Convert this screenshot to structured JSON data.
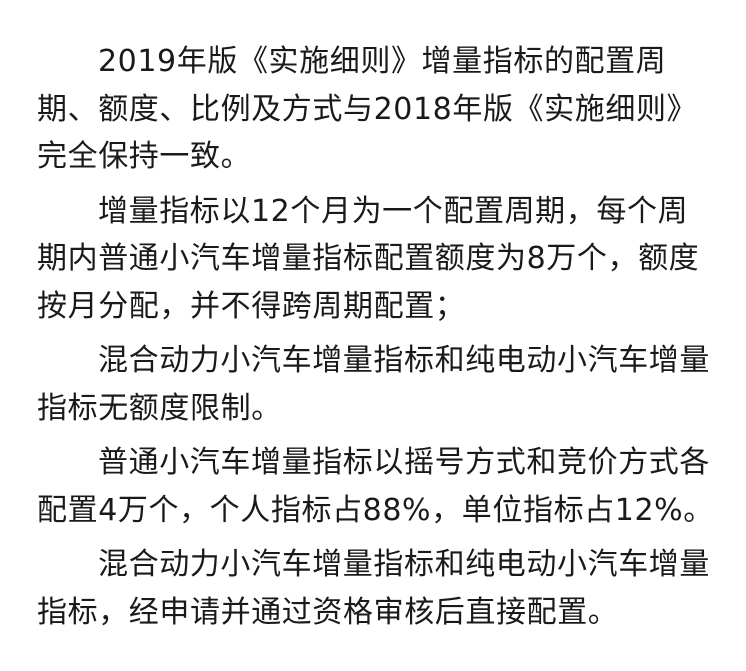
{
  "paragraphs": [
    {
      "lines": [
        "2019年版《实施细则》增量指标的配置周",
        "期、额度、比例及方式与2018年版《实施细则》",
        "完全保持一致。"
      ]
    },
    {
      "lines": [
        "增量指标以12个月为一个配置周期，每个周",
        "期内普通小汽车增量指标配置额度为8万个，额度",
        "按月分配，并不得跨周期配置；"
      ]
    },
    {
      "lines": [
        "混合动力小汽车增量指标和纯电动小汽车增量",
        "指标无额度限制。"
      ]
    },
    {
      "lines": [
        "普通小汽车增量指标以摇号方式和竞价方式各",
        "配置4万个，个人指标占88%，单位指标占12%。"
      ]
    },
    {
      "lines": [
        "混合动力小汽车增量指标和纯电动小汽车增量",
        "指标，经申请并通过资格审核后直接配置。"
      ]
    }
  ]
}
